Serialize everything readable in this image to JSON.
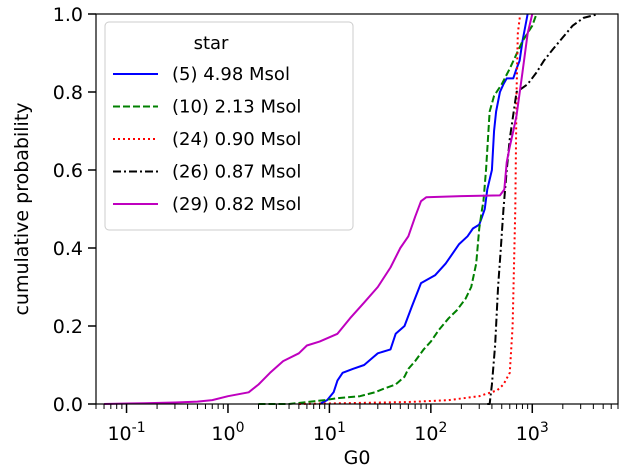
{
  "chart_data": {
    "type": "line",
    "xscale": "log",
    "xlabel": "G0",
    "ylabel": "cumulative probability",
    "xlim": [
      0.05,
      7000
    ],
    "ylim": [
      0,
      1
    ],
    "xticks": [
      {
        "value": 0.1,
        "base": "10",
        "exp": "-1"
      },
      {
        "value": 1,
        "base": "10",
        "exp": "0"
      },
      {
        "value": 10,
        "base": "10",
        "exp": "1"
      },
      {
        "value": 100,
        "base": "10",
        "exp": "2"
      },
      {
        "value": 1000,
        "base": "10",
        "exp": "3"
      }
    ],
    "yticks": [
      {
        "value": 0.0,
        "label": "0.0"
      },
      {
        "value": 0.2,
        "label": "0.2"
      },
      {
        "value": 0.4,
        "label": "0.4"
      },
      {
        "value": 0.6,
        "label": "0.6"
      },
      {
        "value": 0.8,
        "label": "0.8"
      },
      {
        "value": 1.0,
        "label": "1.0"
      }
    ],
    "grid": false,
    "legend": {
      "title": "star",
      "position": "top-left"
    },
    "series": [
      {
        "name": "(5) 4.98 Msol",
        "color": "#0000ff",
        "dash": "solid",
        "points": [
          [
            8,
            0
          ],
          [
            9.5,
            0.01
          ],
          [
            11,
            0.03
          ],
          [
            12,
            0.06
          ],
          [
            13.5,
            0.08
          ],
          [
            17,
            0.09
          ],
          [
            22,
            0.1
          ],
          [
            27,
            0.12
          ],
          [
            30,
            0.13
          ],
          [
            40,
            0.14
          ],
          [
            45,
            0.18
          ],
          [
            55,
            0.2
          ],
          [
            65,
            0.25
          ],
          [
            80,
            0.31
          ],
          [
            110,
            0.33
          ],
          [
            140,
            0.36
          ],
          [
            190,
            0.41
          ],
          [
            230,
            0.43
          ],
          [
            260,
            0.45
          ],
          [
            300,
            0.46
          ],
          [
            320,
            0.48
          ],
          [
            340,
            0.5
          ],
          [
            360,
            0.55
          ],
          [
            400,
            0.6
          ],
          [
            420,
            0.7
          ],
          [
            440,
            0.75
          ],
          [
            480,
            0.8
          ],
          [
            520,
            0.82
          ],
          [
            560,
            0.835
          ],
          [
            650,
            0.835
          ],
          [
            700,
            0.86
          ],
          [
            750,
            0.88
          ],
          [
            800,
            0.93
          ],
          [
            900,
            1.0
          ]
        ]
      },
      {
        "name": "(10) 2.13 Msol",
        "color": "#008000",
        "dash": "dashed",
        "points": [
          [
            2,
            0
          ],
          [
            4,
            0
          ],
          [
            6,
            0.005
          ],
          [
            9,
            0.01
          ],
          [
            12,
            0.015
          ],
          [
            20,
            0.02
          ],
          [
            28,
            0.03
          ],
          [
            35,
            0.04
          ],
          [
            45,
            0.05
          ],
          [
            55,
            0.07
          ],
          [
            60,
            0.09
          ],
          [
            70,
            0.11
          ],
          [
            85,
            0.14
          ],
          [
            100,
            0.16
          ],
          [
            120,
            0.19
          ],
          [
            150,
            0.22
          ],
          [
            180,
            0.24
          ],
          [
            220,
            0.27
          ],
          [
            250,
            0.3
          ],
          [
            280,
            0.36
          ],
          [
            300,
            0.45
          ],
          [
            320,
            0.5
          ],
          [
            330,
            0.52
          ],
          [
            350,
            0.6
          ],
          [
            380,
            0.75
          ],
          [
            420,
            0.79
          ],
          [
            500,
            0.82
          ],
          [
            600,
            0.86
          ],
          [
            800,
            0.93
          ],
          [
            1000,
            0.97
          ],
          [
            1100,
            1.0
          ]
        ]
      },
      {
        "name": "(24) 0.90 Msol",
        "color": "#ff0000",
        "dash": "dotted",
        "points": [
          [
            5,
            0
          ],
          [
            60,
            0.005
          ],
          [
            150,
            0.01
          ],
          [
            300,
            0.02
          ],
          [
            450,
            0.035
          ],
          [
            520,
            0.05
          ],
          [
            600,
            0.08
          ],
          [
            640,
            0.2
          ],
          [
            680,
            0.5
          ],
          [
            700,
            0.8
          ],
          [
            720,
            0.95
          ],
          [
            760,
            1.0
          ]
        ]
      },
      {
        "name": "(26) 0.87 Msol",
        "color": "#000000",
        "dash": "dashdot",
        "points": [
          [
            360,
            0
          ],
          [
            380,
            0
          ],
          [
            400,
            0.05
          ],
          [
            430,
            0.15
          ],
          [
            460,
            0.3
          ],
          [
            490,
            0.4
          ],
          [
            520,
            0.5
          ],
          [
            560,
            0.6
          ],
          [
            600,
            0.68
          ],
          [
            700,
            0.8
          ],
          [
            900,
            0.82
          ],
          [
            1100,
            0.85
          ],
          [
            1300,
            0.88
          ],
          [
            1600,
            0.91
          ],
          [
            2000,
            0.94
          ],
          [
            2500,
            0.97
          ],
          [
            3200,
            0.99
          ],
          [
            4500,
            1.0
          ]
        ]
      },
      {
        "name": "(29) 0.82 Msol",
        "color": "#bf00bf",
        "dash": "solid",
        "points": [
          [
            0.06,
            0
          ],
          [
            0.15,
            0.002
          ],
          [
            0.3,
            0.004
          ],
          [
            0.5,
            0.006
          ],
          [
            0.7,
            0.01
          ],
          [
            1,
            0.02
          ],
          [
            1.6,
            0.03
          ],
          [
            2,
            0.05
          ],
          [
            2.6,
            0.08
          ],
          [
            3.5,
            0.11
          ],
          [
            5,
            0.13
          ],
          [
            6,
            0.15
          ],
          [
            8,
            0.16
          ],
          [
            12,
            0.18
          ],
          [
            16,
            0.22
          ],
          [
            22,
            0.26
          ],
          [
            30,
            0.3
          ],
          [
            40,
            0.35
          ],
          [
            50,
            0.4
          ],
          [
            60,
            0.43
          ],
          [
            70,
            0.48
          ],
          [
            80,
            0.52
          ],
          [
            90,
            0.53
          ],
          [
            200,
            0.533
          ],
          [
            480,
            0.535
          ],
          [
            530,
            0.55
          ],
          [
            560,
            0.62
          ],
          [
            600,
            0.66
          ],
          [
            650,
            0.7
          ],
          [
            700,
            0.74
          ],
          [
            800,
            0.85
          ],
          [
            900,
            0.95
          ],
          [
            1000,
            1.0
          ]
        ]
      }
    ]
  }
}
